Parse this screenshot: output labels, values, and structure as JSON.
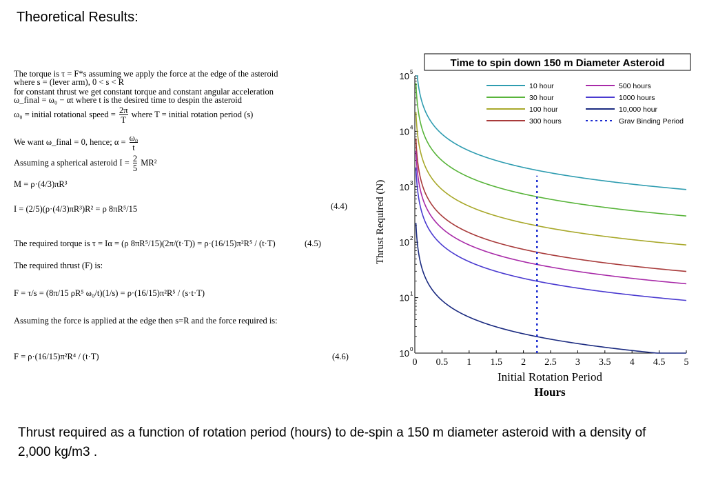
{
  "page": {
    "heading": "Theoretical Results:",
    "caption": "Thrust required as a function of rotation period (hours) to de-spin a 150 m diameter asteroid with a density of 2,000 kg/m3 ."
  },
  "derivation": {
    "line1": "The torque is τ = F*s assuming we apply the force at the edge of the asteroid",
    "line2": "where s = (lever arm),      0 < s < R",
    "line3": "for constant thrust we get constant torque and constant angular acceleration",
    "line4": "ω_final = ω₀ − αt    where t is the desired time to despin the asteroid",
    "line5a": "ω₀ = initial rotational speed =",
    "line5_num": "2π",
    "line5_den": "T",
    "line5b": "where T = initial rotation period (s)",
    "line6a": "We want ω_final = 0,  hence;  α =",
    "line6_num": "ω₀",
    "line6_den": "t",
    "line7a": "Assuming a spherical asteroid I =",
    "line7_num": "2",
    "line7_den": "5",
    "line7b": "MR²",
    "line8": "M = ρ·(4/3)πR³",
    "line9": "I = (2/5)(ρ·(4/3)πR³)R² = ρ 8πR⁵/15",
    "line10": "The required torque is τ = Iα = (ρ 8πR⁵/15)(2π/(t·T)) = ρ·(16/15)π²R⁵ / (t·T)",
    "line11": "The required thrust (F) is:",
    "line12": "F = τ/s = (8π/15 ρR⁵ ω₀/t)(1/s) = ρ·(16/15)π²R⁵ / (s·t·T)",
    "line13": "Assuming the force is applied at the edge then s=R and the force required is:",
    "line14": "F = ρ·(16/15)π²R⁴ / (t·T)",
    "eq_44": "(4.4)",
    "eq_45": "(4.5)",
    "eq_46": "(4.6)"
  },
  "chart_data": {
    "type": "line",
    "title": "Time to spin down 150 m Diameter Asteroid",
    "xlabel": "Initial Rotation Period",
    "xlabel2": "Hours",
    "ylabel": "Thrust Required (N)",
    "xlim": [
      0,
      5
    ],
    "ylim_log10": [
      0,
      5
    ],
    "yscale": "log",
    "grid": false,
    "legend_position": "top-right",
    "x_ticks": [
      "0",
      "0.5",
      "1",
      "1.5",
      "2",
      "2.5",
      "3",
      "3.5",
      "4",
      "4.5",
      "5"
    ],
    "y_ticks": [
      {
        "base": "10",
        "exp": "0"
      },
      {
        "base": "10",
        "exp": "1"
      },
      {
        "base": "10",
        "exp": "2"
      },
      {
        "base": "10",
        "exp": "3"
      },
      {
        "base": "10",
        "exp": "4"
      },
      {
        "base": "10",
        "exp": "5"
      }
    ],
    "formula": "F = K / (t * T)",
    "series": [
      {
        "name": "10 hour",
        "despin_hours": 10,
        "color": "#2e9cb0",
        "style": "solid"
      },
      {
        "name": "30 hour",
        "despin_hours": 30,
        "color": "#58b43a",
        "style": "solid"
      },
      {
        "name": "100 hour",
        "despin_hours": 100,
        "color": "#a8a82a",
        "style": "solid"
      },
      {
        "name": "300 hours",
        "despin_hours": 300,
        "color": "#a83a3a",
        "style": "solid"
      },
      {
        "name": "500 hours",
        "despin_hours": 500,
        "color": "#a82aa8",
        "style": "solid"
      },
      {
        "name": "1000 hours",
        "despin_hours": 1000,
        "color": "#4a3ad0",
        "style": "solid"
      },
      {
        "name": "10,000 hour",
        "despin_hours": 10000,
        "color": "#1a2a80",
        "style": "solid"
      },
      {
        "name": "Grav Binding Period",
        "x": 2.25,
        "y_range_log10": [
          0,
          3.2
        ],
        "color": "#1a2ad0",
        "style": "dotted"
      }
    ],
    "sample_values": {
      "x": [
        0.5,
        1,
        2,
        3,
        4,
        5
      ],
      "10 hour": [
        9000,
        4500,
        2250,
        1500,
        1130,
        900
      ],
      "30 hour": [
        3000,
        1500,
        750,
        500,
        375,
        300
      ],
      "100 hour": [
        900,
        450,
        225,
        150,
        113,
        90
      ],
      "300 hours": [
        300,
        150,
        75,
        50,
        37.5,
        30
      ],
      "500 hours": [
        180,
        90,
        45,
        30,
        22.5,
        18
      ],
      "1000 hours": [
        90,
        45,
        22.5,
        15,
        11.3,
        9
      ],
      "10,000 hour": [
        9,
        4.5,
        2.25,
        1.5,
        1.13,
        0.9
      ]
    }
  }
}
